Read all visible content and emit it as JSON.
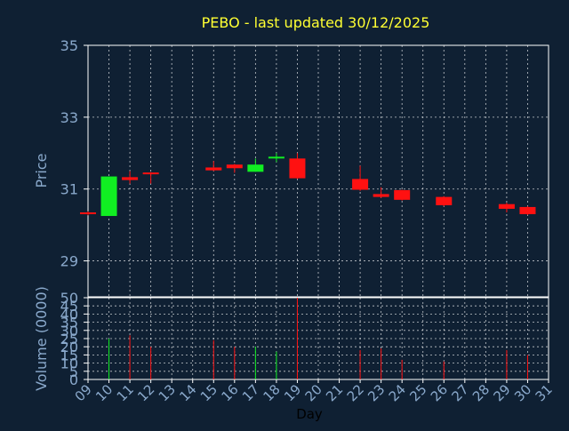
{
  "colors": {
    "background": "#0f2033",
    "title": "#ffff33",
    "axis_text": "#8aa9cc",
    "frame": "#ffffff",
    "grid": "#ffffff",
    "up": "#11ee22",
    "down": "#ff1111",
    "xlabel_text": "#000000"
  },
  "chart_data": [
    {
      "type": "candlestick",
      "title": "PEBO - last updated 30/12/2025",
      "ylabel": "Price",
      "ylim": [
        28,
        35
      ],
      "yticks": [
        29,
        31,
        33,
        35
      ],
      "grid": true,
      "x_domain": [
        9,
        31
      ],
      "xticks": [
        "09",
        "10",
        "11",
        "12",
        "13",
        "14",
        "15",
        "16",
        "17",
        "18",
        "19",
        "20",
        "21",
        "22",
        "23",
        "24",
        "25",
        "26",
        "27",
        "28",
        "29",
        "30",
        "31"
      ],
      "candles": [
        {
          "day": 9,
          "open": 30.35,
          "close": 30.3,
          "high": 30.38,
          "low": 30.27
        },
        {
          "day": 10,
          "open": 30.25,
          "close": 31.35,
          "high": 31.35,
          "low": 30.25
        },
        {
          "day": 11,
          "open": 31.33,
          "close": 31.25,
          "high": 31.5,
          "low": 31.15
        },
        {
          "day": 12,
          "open": 31.46,
          "close": 31.42,
          "high": 31.47,
          "low": 31.15
        },
        {
          "day": 15,
          "open": 31.6,
          "close": 31.52,
          "high": 31.78,
          "low": 31.5
        },
        {
          "day": 16,
          "open": 31.68,
          "close": 31.58,
          "high": 31.7,
          "low": 31.45
        },
        {
          "day": 17,
          "open": 31.48,
          "close": 31.68,
          "high": 31.85,
          "low": 31.48
        },
        {
          "day": 18,
          "open": 31.87,
          "close": 31.9,
          "high": 32.0,
          "low": 31.75
        },
        {
          "day": 19,
          "open": 31.85,
          "close": 31.3,
          "high": 32.0,
          "low": 31.28
        },
        {
          "day": 22,
          "open": 31.28,
          "close": 30.98,
          "high": 31.65,
          "low": 30.95
        },
        {
          "day": 23,
          "open": 30.86,
          "close": 30.78,
          "high": 31.05,
          "low": 30.75
        },
        {
          "day": 24,
          "open": 30.97,
          "close": 30.7,
          "high": 30.98,
          "low": 30.68
        },
        {
          "day": 26,
          "open": 30.78,
          "close": 30.55,
          "high": 30.8,
          "low": 30.52
        },
        {
          "day": 29,
          "open": 30.58,
          "close": 30.45,
          "high": 30.62,
          "low": 30.35
        },
        {
          "day": 30,
          "open": 30.5,
          "close": 30.3,
          "high": 30.52,
          "low": 30.28
        }
      ]
    },
    {
      "type": "bar",
      "ylabel": "Volume (0000)",
      "xlabel": "Day",
      "ylim": [
        0,
        50
      ],
      "yticks": [
        0,
        5,
        10,
        15,
        20,
        25,
        30,
        35,
        40,
        45,
        50
      ],
      "grid": true,
      "x_domain": [
        9,
        31
      ],
      "xticks": [
        "09",
        "10",
        "11",
        "12",
        "13",
        "14",
        "15",
        "16",
        "17",
        "18",
        "19",
        "20",
        "21",
        "22",
        "23",
        "24",
        "25",
        "26",
        "27",
        "28",
        "29",
        "30",
        "31"
      ],
      "bars": [
        {
          "day": 9,
          "value": 0,
          "direction": "down"
        },
        {
          "day": 10,
          "value": 25,
          "direction": "up"
        },
        {
          "day": 11,
          "value": 27,
          "direction": "down"
        },
        {
          "day": 12,
          "value": 20,
          "direction": "down"
        },
        {
          "day": 15,
          "value": 24,
          "direction": "down"
        },
        {
          "day": 16,
          "value": 20,
          "direction": "down"
        },
        {
          "day": 17,
          "value": 20,
          "direction": "up"
        },
        {
          "day": 18,
          "value": 17,
          "direction": "up"
        },
        {
          "day": 19,
          "value": 50,
          "direction": "down"
        },
        {
          "day": 22,
          "value": 18,
          "direction": "down"
        },
        {
          "day": 23,
          "value": 19,
          "direction": "down"
        },
        {
          "day": 24,
          "value": 12,
          "direction": "down"
        },
        {
          "day": 26,
          "value": 11,
          "direction": "down"
        },
        {
          "day": 29,
          "value": 18,
          "direction": "down"
        },
        {
          "day": 30,
          "value": 15,
          "direction": "down"
        }
      ]
    }
  ]
}
